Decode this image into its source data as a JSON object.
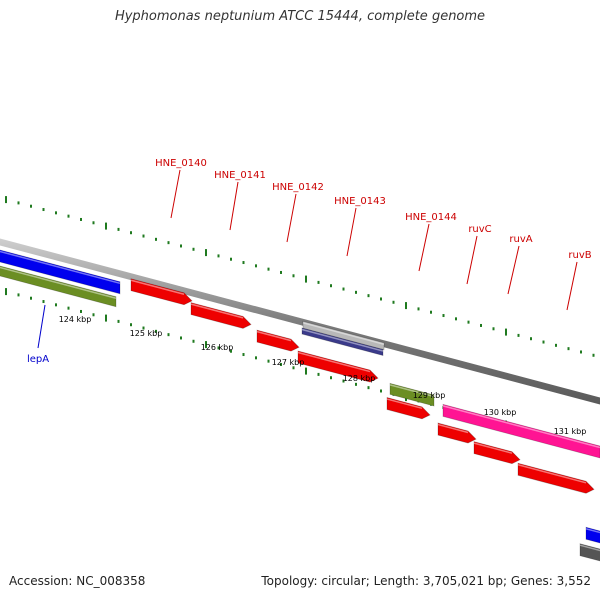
{
  "title": "Hyphomonas neptunium ATCC 15444, complete genome",
  "footer": {
    "accession": "Accession: NC_008358",
    "summary": "Topology: circular; Length: 3,705,021 bp; Genes: 3,552"
  },
  "colors": {
    "backbone": "#8a8a8a",
    "tick": "#1f7a1f",
    "label_red": "#cc0000",
    "label_blue": "#0000cc"
  },
  "scale_labels": [
    "124 kbp",
    "125 kbp",
    "126 kbp",
    "127 kbp",
    "128 kbp",
    "129 kbp",
    "130 kbp",
    "131 kbp"
  ],
  "gene_labels": [
    {
      "name": "HNE_0140",
      "color": "#cc0000"
    },
    {
      "name": "HNE_0141",
      "color": "#cc0000"
    },
    {
      "name": "HNE_0142",
      "color": "#cc0000"
    },
    {
      "name": "HNE_0143",
      "color": "#cc0000"
    },
    {
      "name": "HNE_0144",
      "color": "#cc0000"
    },
    {
      "name": "ruvC",
      "color": "#cc0000"
    },
    {
      "name": "ruvA",
      "color": "#cc0000"
    },
    {
      "name": "ruvB",
      "color": "#cc0000"
    },
    {
      "name": "lepA",
      "color": "#0000cc"
    }
  ],
  "features": [
    {
      "strand": "+",
      "color": "#0000ee",
      "type": "gene"
    },
    {
      "strand": "+",
      "color": "#6b8e23",
      "type": "gene"
    },
    {
      "strand": "+",
      "color": "#ee0000",
      "type": "gene"
    },
    {
      "strand": "+",
      "color": "#ee0000",
      "type": "gene"
    },
    {
      "strand": "+",
      "color": "#ee0000",
      "type": "gene"
    },
    {
      "strand": "+",
      "color": "#b8b8b8",
      "type": "gene"
    },
    {
      "strand": "+",
      "color": "#3a3a8a",
      "type": "gene"
    },
    {
      "strand": "+",
      "color": "#ee0000",
      "type": "gene"
    },
    {
      "strand": "+",
      "color": "#6b8e23",
      "type": "gene"
    },
    {
      "strand": "+",
      "color": "#ee0000",
      "type": "gene"
    },
    {
      "strand": "+",
      "color": "#ff1493",
      "type": "gene"
    },
    {
      "strand": "+",
      "color": "#ee0000",
      "type": "gene"
    },
    {
      "strand": "+",
      "color": "#ee0000",
      "type": "gene"
    },
    {
      "strand": "+",
      "color": "#ee0000",
      "type": "gene"
    },
    {
      "strand": "+",
      "color": "#0000ee",
      "type": "gene"
    },
    {
      "strand": "+",
      "color": "#555555",
      "type": "gene"
    }
  ]
}
